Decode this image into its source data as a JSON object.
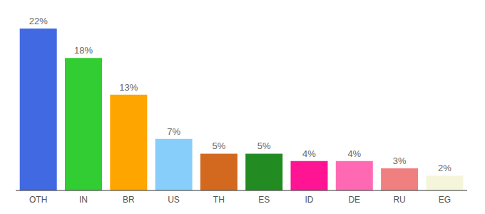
{
  "chart_data": {
    "type": "bar",
    "categories": [
      "OTH",
      "IN",
      "BR",
      "US",
      "TH",
      "ES",
      "ID",
      "DE",
      "RU",
      "EG"
    ],
    "values": [
      22,
      18,
      13,
      7,
      5,
      5,
      4,
      4,
      3,
      2
    ],
    "value_labels": [
      "22%",
      "18%",
      "13%",
      "7%",
      "5%",
      "5%",
      "4%",
      "4%",
      "3%",
      "2%"
    ],
    "colors": [
      "#4169e1",
      "#32cd32",
      "#ffa500",
      "#87cefa",
      "#d2691e",
      "#228b22",
      "#ff1493",
      "#ff69b4",
      "#f08080",
      "#f5f5dc"
    ],
    "data_labels": true,
    "tick_labels": "x",
    "grid": false
  }
}
